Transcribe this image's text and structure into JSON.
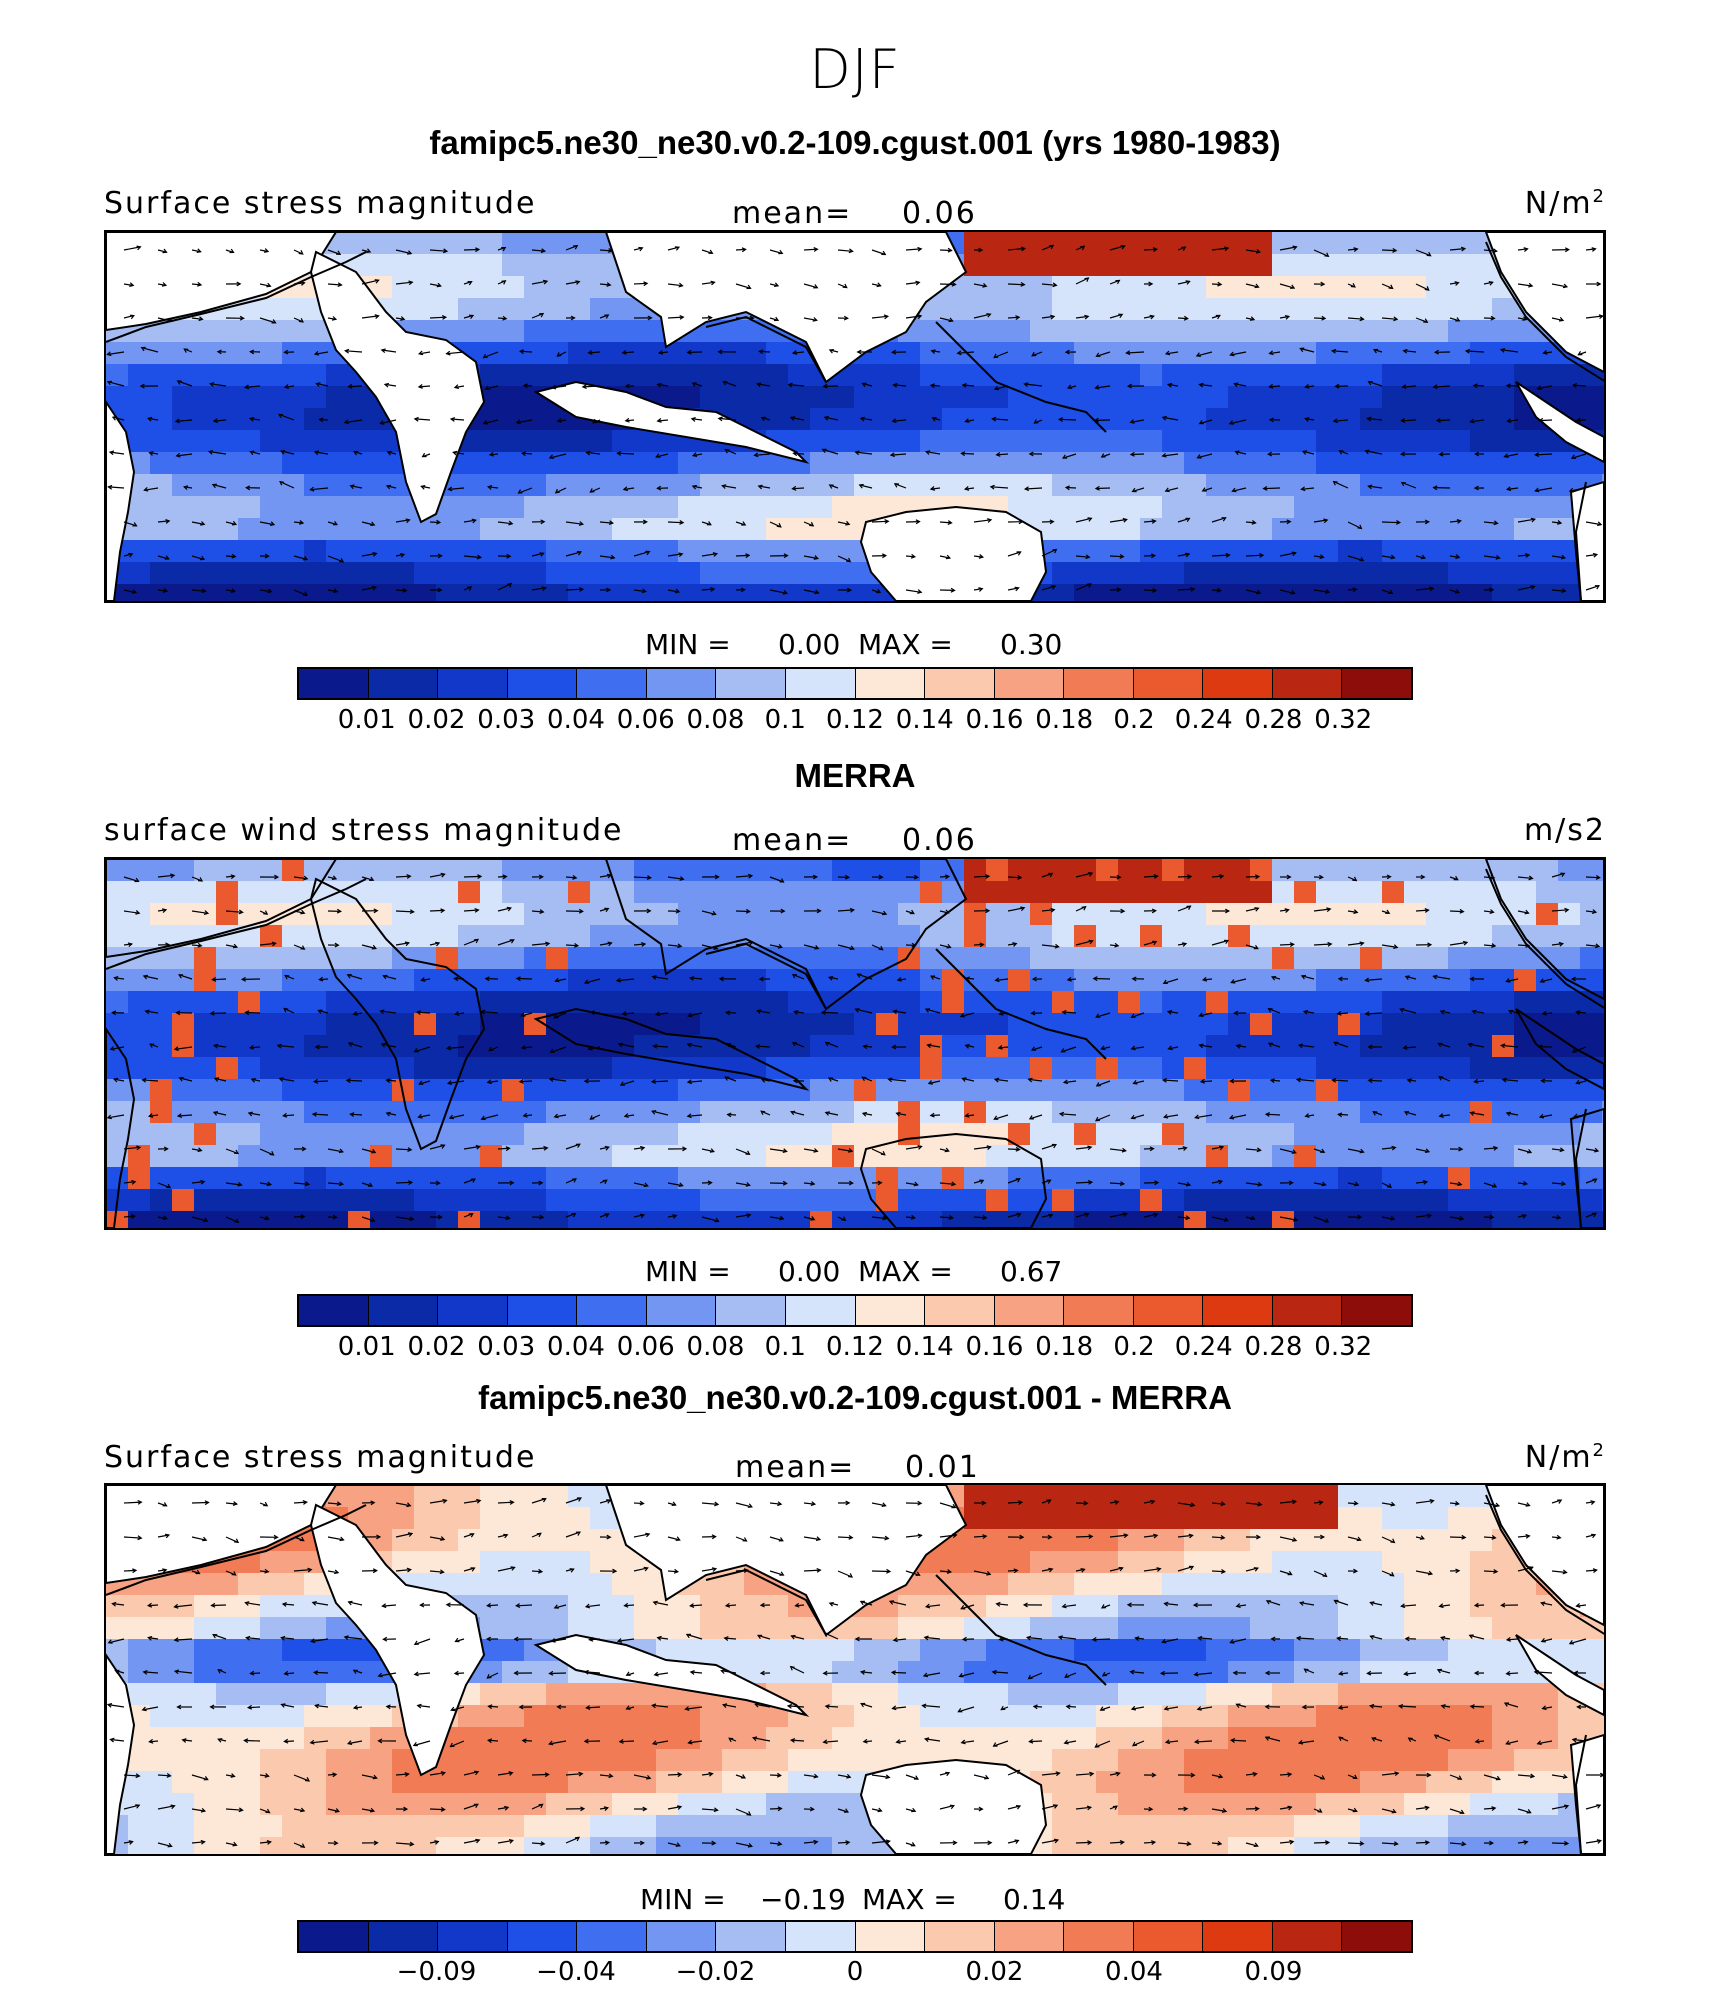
{
  "season": "DJF",
  "panels": [
    {
      "title": "famipc5.ne30_ne30.v0.2-109.cgust.001 (yrs 1980-1983)",
      "left_label": "Surface stress magnitude",
      "mean_label": "mean=",
      "mean_value": "0.06",
      "units": "N/m",
      "units_sup": "2",
      "min_label": "MIN =",
      "min_value": "0.00",
      "max_label": "MAX =",
      "max_value": "0.30",
      "colorbar": [
        "#0a1a8c",
        "#0b2aa8",
        "#1138c8",
        "#1e4fe6",
        "#3f6ef0",
        "#7296f2",
        "#a5bdf3",
        "#d6e4fb",
        "#fde8d8",
        "#fbc9ae",
        "#f7a283",
        "#f07b55",
        "#eb5a2f",
        "#dd3a12",
        "#b92612",
        "#8c0d0a"
      ],
      "colorbar_ticks": [
        "0.01",
        "0.02",
        "0.03",
        "0.04",
        "0.06",
        "0.08",
        "0.1",
        "0.12",
        "0.14",
        "0.16",
        "0.18",
        "0.2",
        "0.24",
        "0.28",
        "0.32"
      ],
      "field": "abs"
    },
    {
      "title": "MERRA",
      "left_label": "surface wind stress magnitude",
      "mean_label": "mean=",
      "mean_value": "0.06",
      "units": "m/s2",
      "units_sup": "",
      "min_label": "MIN =",
      "min_value": "0.00",
      "max_label": "MAX =",
      "max_value": "0.67",
      "colorbar": [
        "#0a1a8c",
        "#0b2aa8",
        "#1138c8",
        "#1e4fe6",
        "#3f6ef0",
        "#7296f2",
        "#a5bdf3",
        "#d6e4fb",
        "#fde8d8",
        "#fbc9ae",
        "#f7a283",
        "#f07b55",
        "#eb5a2f",
        "#dd3a12",
        "#b92612",
        "#8c0d0a"
      ],
      "colorbar_ticks": [
        "0.01",
        "0.02",
        "0.03",
        "0.04",
        "0.06",
        "0.08",
        "0.1",
        "0.12",
        "0.14",
        "0.16",
        "0.18",
        "0.2",
        "0.24",
        "0.28",
        "0.32"
      ],
      "field": "abs"
    },
    {
      "title": "famipc5.ne30_ne30.v0.2-109.cgust.001 - MERRA",
      "left_label": "Surface stress magnitude",
      "mean_label": "mean=",
      "mean_value": "0.01",
      "units": "N/m",
      "units_sup": "2",
      "min_label": "MIN =",
      "min_value": "−0.19",
      "max_label": "MAX =",
      "max_value": "0.14",
      "colorbar": [
        "#0a1a8c",
        "#0b2aa8",
        "#1138c8",
        "#1e4fe6",
        "#3f6ef0",
        "#7296f2",
        "#a5bdf3",
        "#d6e4fb",
        "#fde8d8",
        "#fbc9ae",
        "#f7a283",
        "#f07b55",
        "#eb5a2f",
        "#dd3a12",
        "#b92612",
        "#8c0d0a"
      ],
      "colorbar_ticks": [
        "−0.09",
        "−0.04",
        "−0.02",
        "0",
        "0.02",
        "0.04",
        "0.09"
      ],
      "field": "diff"
    }
  ],
  "chart_data": [
    {
      "type": "heatmap",
      "title": "famipc5.ne30_ne30.v0.2-109.cgust.001 (yrs 1980-1983)",
      "variable": "Surface stress magnitude",
      "units": "N/m2",
      "mean": 0.06,
      "min": 0.0,
      "max": 0.3,
      "color_levels": [
        0.01,
        0.02,
        0.03,
        0.04,
        0.06,
        0.08,
        0.1,
        0.12,
        0.14,
        0.16,
        0.18,
        0.2,
        0.24,
        0.28,
        0.32
      ]
    },
    {
      "type": "heatmap",
      "title": "MERRA",
      "variable": "surface wind stress magnitude",
      "units": "m/s2",
      "mean": 0.06,
      "min": 0.0,
      "max": 0.67,
      "color_levels": [
        0.01,
        0.02,
        0.03,
        0.04,
        0.06,
        0.08,
        0.1,
        0.12,
        0.14,
        0.16,
        0.18,
        0.2,
        0.24,
        0.28,
        0.32
      ]
    },
    {
      "type": "heatmap",
      "title": "famipc5.ne30_ne30.v0.2-109.cgust.001 - MERRA",
      "variable": "Surface stress magnitude",
      "units": "N/m2",
      "mean": 0.01,
      "min": -0.19,
      "max": 0.14,
      "color_levels": [
        -0.09,
        -0.04,
        -0.02,
        0,
        0.02,
        0.04,
        0.09
      ]
    }
  ]
}
